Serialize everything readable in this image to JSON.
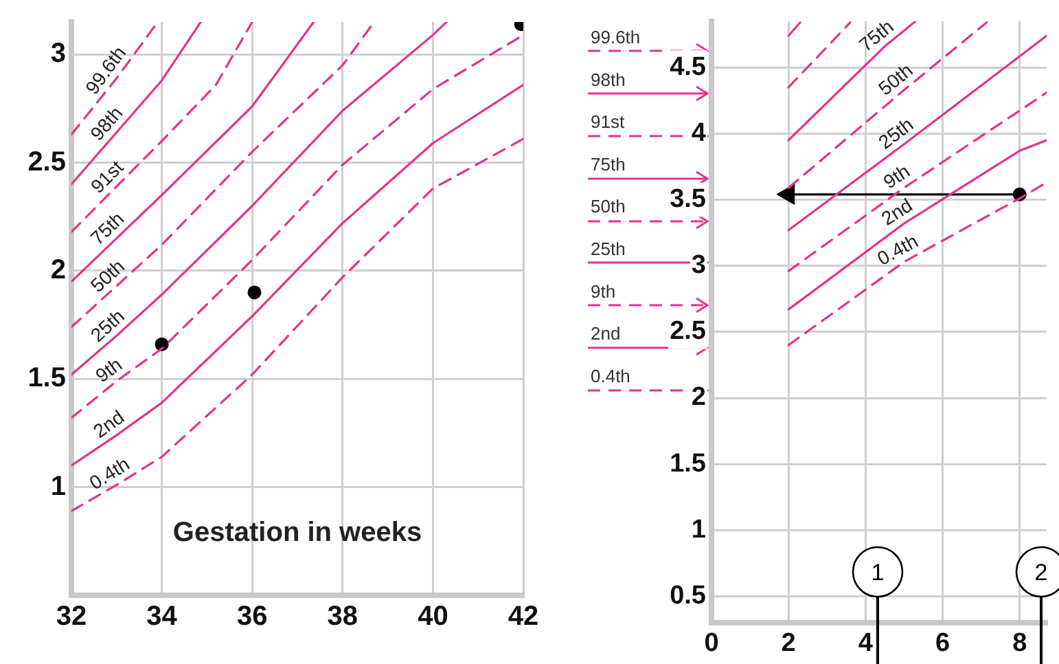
{
  "chart_data": [
    {
      "type": "line",
      "xlabel": "Gestation in weeks",
      "xlim": [
        32,
        42
      ],
      "xticks": [
        32,
        34,
        36,
        38,
        40,
        42
      ],
      "ylim": [
        0.5,
        3.15
      ],
      "yticks": [
        1,
        1.5,
        2,
        2.5,
        3
      ],
      "grid": true,
      "legend": false,
      "series": [
        {
          "name": "99.6th",
          "color": "#e4338c",
          "line_style": "dashed",
          "x": [
            32,
            33,
            33.84
          ],
          "values": [
            2.63,
            2.89,
            3.13
          ]
        },
        {
          "name": "98th",
          "color": "#e4338c",
          "line_style": "solid",
          "x": [
            32,
            33,
            34,
            34.86
          ],
          "values": [
            2.4,
            2.64,
            2.88,
            3.15
          ]
        },
        {
          "name": "91st",
          "color": "#e4338c",
          "line_style": "dashed",
          "x": [
            32,
            33,
            34,
            35.2,
            36.0
          ],
          "values": [
            2.18,
            2.39,
            2.6,
            2.86,
            3.15
          ]
        },
        {
          "name": "75th",
          "color": "#e4338c",
          "line_style": "solid",
          "x": [
            32,
            33,
            34,
            36,
            37.36
          ],
          "values": [
            1.95,
            2.15,
            2.35,
            2.76,
            3.15
          ]
        },
        {
          "name": "50th",
          "color": "#e4338c",
          "line_style": "dashed",
          "x": [
            32,
            33,
            34,
            36,
            38,
            38.7
          ],
          "values": [
            1.74,
            1.93,
            2.12,
            2.55,
            2.95,
            3.15
          ]
        },
        {
          "name": "25th",
          "color": "#e4338c",
          "line_style": "solid",
          "x": [
            32,
            33,
            34,
            36,
            38,
            40,
            40.3
          ],
          "values": [
            1.52,
            1.7,
            1.89,
            2.3,
            2.74,
            3.09,
            3.15
          ]
        },
        {
          "name": "9th",
          "color": "#e4338c",
          "line_style": "dashed",
          "x": [
            32,
            33,
            34,
            36,
            38,
            40,
            42
          ],
          "values": [
            1.32,
            1.49,
            1.64,
            2.05,
            2.49,
            2.84,
            3.09
          ]
        },
        {
          "name": "2nd",
          "color": "#e4338c",
          "line_style": "solid",
          "x": [
            32,
            33,
            34,
            36,
            38,
            40,
            42
          ],
          "values": [
            1.1,
            1.24,
            1.39,
            1.79,
            2.22,
            2.59,
            2.86
          ]
        },
        {
          "name": "0.4th",
          "color": "#e4338c",
          "line_style": "dashed",
          "x": [
            32,
            33,
            34,
            36,
            38,
            40,
            42
          ],
          "values": [
            0.89,
            1.01,
            1.14,
            1.52,
            1.97,
            2.38,
            2.61
          ]
        },
        {
          "type": "scatter",
          "color": "#000000",
          "marker": "circle",
          "x": [
            34,
            36.05,
            41.95
          ],
          "values": [
            1.66,
            1.9,
            3.14
          ]
        }
      ]
    },
    {
      "type": "line",
      "xlim": [
        0,
        8.7
      ],
      "xticks": [
        0,
        2,
        4,
        6,
        8
      ],
      "ylim": [
        0.3,
        4.85
      ],
      "yticks": [
        0.5,
        1,
        1.5,
        2,
        2.5,
        3,
        3.5,
        4,
        4.5
      ],
      "grid": true,
      "legend": false,
      "annotations": [
        "99.6th",
        "98th",
        "91st",
        "75th",
        "50th",
        "25th",
        "9th",
        "2nd",
        "0.4th",
        "1",
        "2"
      ],
      "series": [
        {
          "color": "#e4338c",
          "line_style": "solid",
          "x": [
            2,
            2.3
          ],
          "values": [
            4.74,
            4.84
          ]
        },
        {
          "color": "#e4338c",
          "line_style": "dashed",
          "x": [
            2,
            3.6
          ],
          "values": [
            4.35,
            4.84
          ]
        },
        {
          "name": "75th",
          "color": "#e4338c",
          "line_style": "solid",
          "x": [
            2,
            4.5,
            5.3
          ],
          "values": [
            3.95,
            4.66,
            4.85
          ]
        },
        {
          "name": "50th",
          "color": "#e4338c",
          "line_style": "dashed",
          "x": [
            2,
            5,
            7.14
          ],
          "values": [
            3.59,
            4.33,
            4.84
          ]
        },
        {
          "name": "25th",
          "color": "#e4338c",
          "line_style": "solid",
          "x": [
            2,
            5,
            8.7
          ],
          "values": [
            3.27,
            3.92,
            4.74
          ]
        },
        {
          "name": "9th",
          "color": "#e4338c",
          "line_style": "dashed",
          "x": [
            2,
            5,
            8.7
          ],
          "values": [
            2.96,
            3.59,
            4.31
          ]
        },
        {
          "name": "2nd",
          "color": "#e4338c",
          "line_style": "solid",
          "x": [
            2,
            5,
            8,
            8.7
          ],
          "values": [
            2.67,
            3.32,
            3.87,
            3.95
          ]
        },
        {
          "name": "0.4th",
          "color": "#e4338c",
          "line_style": "dashed",
          "x": [
            2,
            5,
            8,
            8.7
          ],
          "values": [
            2.4,
            3.03,
            3.51,
            3.63
          ]
        },
        {
          "color": "#000000",
          "line_style": "solid",
          "marker": "triangle",
          "x": [
            2,
            8
          ],
          "values": [
            3.54,
            3.54
          ]
        },
        {
          "type": "scatter",
          "color": "#000000",
          "marker": "circle",
          "x": [
            8
          ],
          "values": [
            3.54
          ]
        }
      ]
    }
  ]
}
